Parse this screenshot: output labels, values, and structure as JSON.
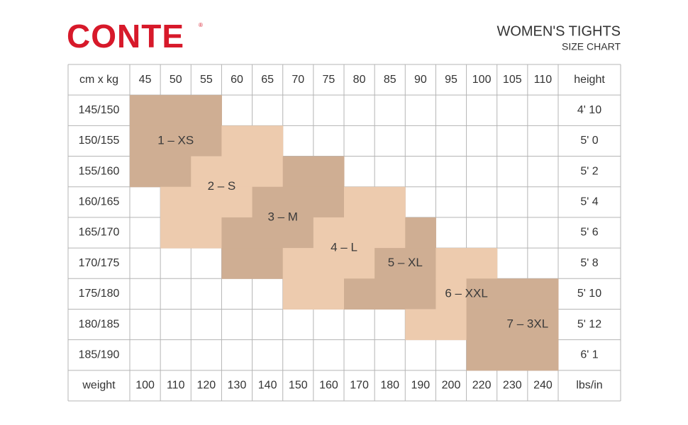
{
  "header": {
    "brand": "CONTE",
    "registered": "®",
    "title": "WOMEN'S TIGHTS",
    "subtitle": "SIZE CHART"
  },
  "table": {
    "header": [
      "cm x kg",
      "45",
      "50",
      "55",
      "60",
      "65",
      "70",
      "75",
      "80",
      "85",
      "90",
      "95",
      "100",
      "105",
      "110",
      "height"
    ],
    "rows": [
      [
        "145/150",
        "4' 10"
      ],
      [
        "150/155",
        "5' 0"
      ],
      [
        "155/160",
        "5' 2"
      ],
      [
        "160/165",
        "5' 4"
      ],
      [
        "165/170",
        "5' 6"
      ],
      [
        "170/175",
        "5' 8"
      ],
      [
        "175/180",
        "5' 10"
      ],
      [
        "180/185",
        "5' 12"
      ],
      [
        "185/190",
        "6' 1"
      ]
    ],
    "footer": [
      "weight",
      "100",
      "110",
      "120",
      "130",
      "140",
      "150",
      "160",
      "170",
      "180",
      "190",
      "200",
      "220",
      "230",
      "240",
      "lbs/in"
    ]
  },
  "sizes": [
    "1 – XS",
    "2 – S",
    "3 – M",
    "4 – L",
    "5 – XL",
    "6 – XXL",
    "7 – 3XL"
  ]
}
